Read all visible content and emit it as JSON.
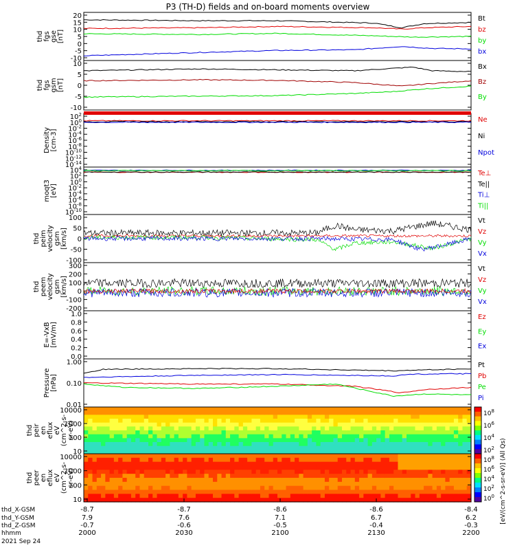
{
  "title": "P3 (TH-D) fields and on-board moments overview",
  "colors": {
    "black": "#000000",
    "red": "#e00000",
    "green": "#00dd00",
    "blue": "#0000dd",
    "darkred": "#a00000",
    "orange": "#ff6600"
  },
  "chart_data": {
    "type": "line",
    "title": "P3 (TH-D) fields and on-board moments overview",
    "x_axis": {
      "rows": [
        {
          "label": "thd_X-GSM",
          "values": [
            "-8.7",
            "-8.7",
            "-8.6",
            "-8.6",
            "-8.4"
          ]
        },
        {
          "label": "thd_Y-GSM",
          "values": [
            "7.9",
            "7.6",
            "7.1",
            "6.7",
            "6.2"
          ]
        },
        {
          "label": "thd_Z-GSM",
          "values": [
            "-0.7",
            "-0.6",
            "-0.5",
            "-0.4",
            "-0.3"
          ]
        },
        {
          "label": "hhmm",
          "values": [
            "2000",
            "2030",
            "2100",
            "2130",
            "2200"
          ]
        }
      ],
      "date": "2021 Sep 24"
    },
    "panels": [
      {
        "ylabel": [
          "thd",
          "fgs",
          "gse",
          "[nT]"
        ],
        "ylim": [
          -13,
          20
        ],
        "ticks": [
          "20",
          "15",
          "10",
          "5",
          "0",
          "-5",
          "-10"
        ],
        "legend": [
          {
            "text": "Bt",
            "color": "black"
          },
          {
            "text": "bz",
            "color": "red"
          },
          {
            "text": "by",
            "color": "green"
          },
          {
            "text": "bx",
            "color": "blue"
          }
        ],
        "series": [
          {
            "name": "Bt",
            "color": "black",
            "x": [
              0,
              0.3,
              0.5,
              0.75,
              0.82,
              0.88,
              1
            ],
            "y": [
              16,
              15.3,
              15.3,
              13.5,
              10,
              13.2,
              14
            ]
          },
          {
            "name": "bz",
            "color": "red",
            "x": [
              0,
              0.3,
              0.5,
              0.75,
              0.82,
              0.88,
              1
            ],
            "y": [
              9.5,
              10,
              11,
              10,
              9,
              10,
              11
            ]
          },
          {
            "name": "by",
            "color": "green",
            "x": [
              0,
              0.3,
              0.5,
              0.75,
              0.85,
              1
            ],
            "y": [
              5.5,
              5,
              5.8,
              4,
              3,
              3.5
            ]
          },
          {
            "name": "bx",
            "color": "blue",
            "x": [
              0,
              0.3,
              0.5,
              0.7,
              0.82,
              0.9,
              1
            ],
            "y": [
              -11,
              -8.5,
              -7,
              -6.5,
              -4,
              -5.5,
              -5.8
            ]
          }
        ]
      },
      {
        "ylabel": [
          "thd",
          "fgs",
          "gsm",
          "[nT]"
        ],
        "ylim": [
          -15,
          10
        ],
        "ticks": [
          "10",
          "5",
          "0",
          "-5",
          "-10"
        ],
        "legend": [
          {
            "text": "Bx",
            "color": "black"
          },
          {
            "text": "Bz",
            "color": "darkred"
          },
          {
            "text": "By",
            "color": "green"
          }
        ],
        "series": [
          {
            "name": "Bx",
            "color": "black",
            "x": [
              0,
              0.3,
              0.5,
              0.7,
              0.85,
              0.9,
              1
            ],
            "y": [
              5.5,
              6.5,
              6,
              5.5,
              7.5,
              5.5,
              5
            ]
          },
          {
            "name": "Bz",
            "color": "darkred",
            "x": [
              0,
              0.3,
              0.5,
              0.7,
              0.82,
              0.9,
              1
            ],
            "y": [
              0,
              0.5,
              0.2,
              -1,
              -3,
              -1.5,
              0
            ]
          },
          {
            "name": "By",
            "color": "green",
            "x": [
              0,
              0.3,
              0.5,
              0.7,
              0.8,
              0.88,
              1
            ],
            "y": [
              -9,
              -8.5,
              -8.2,
              -7,
              -6,
              -4.5,
              -3
            ]
          }
        ]
      },
      {
        "ylabel": [
          "Density",
          "[cm-3]"
        ],
        "log": true,
        "ylim": [
          -14,
          2
        ],
        "ticks": [
          "10^2",
          "10^0",
          "10^-2",
          "10^-4",
          "10^-6",
          "10^-8",
          "10^-10",
          "10^-12",
          "10^-14"
        ],
        "legend": [
          {
            "text": "Ne",
            "color": "red"
          },
          {
            "text": "Ni",
            "color": "black"
          },
          {
            "text": "Npot",
            "color": "blue"
          }
        ],
        "series": [
          {
            "name": "Ne",
            "color": "red",
            "x": [
              0,
              1
            ],
            "y": [
              0.3,
              0.3
            ]
          },
          {
            "name": "Ni",
            "color": "black",
            "x": [
              0,
              1
            ],
            "y": [
              0,
              0
            ]
          },
          {
            "name": "Npot",
            "color": "blue",
            "x": [
              0,
              1
            ],
            "y": [
              -0.2,
              -0.2
            ]
          }
        ]
      },
      {
        "ylabel": [
          "moqt3",
          "[eV]"
        ],
        "log": true,
        "ylim": [
          -10,
          4
        ],
        "ticks": [
          "10^4",
          "10^2",
          "10^0",
          "10^-2",
          "10^-4",
          "10^-6",
          "10^-8",
          "10^-10"
        ],
        "legend": [
          {
            "text": "Te⊥",
            "color": "red"
          },
          {
            "text": "Te||",
            "color": "black"
          },
          {
            "text": "Ti⊥",
            "color": "blue"
          },
          {
            "text": "Ti||",
            "color": "green"
          }
        ],
        "series": [
          {
            "name": "Te⊥",
            "color": "red",
            "x": [
              0,
              1
            ],
            "y": [
              3.0,
              3.0
            ]
          },
          {
            "name": "Te||",
            "color": "black",
            "x": [
              0,
              1
            ],
            "y": [
              3.05,
              3.05
            ]
          },
          {
            "name": "Ti⊥",
            "color": "blue",
            "x": [
              0,
              1
            ],
            "y": [
              3.6,
              3.6
            ]
          },
          {
            "name": "Ti||",
            "color": "green",
            "x": [
              0,
              1
            ],
            "y": [
              3.5,
              3.5
            ]
          }
        ]
      },
      {
        "ylabel": [
          "thd",
          "peim",
          "velocity",
          "gsm",
          "[km/s]"
        ],
        "ylim": [
          -100,
          100
        ],
        "ticks": [
          "100",
          "50",
          "0",
          "-50",
          "-100"
        ],
        "legend": [
          {
            "text": "Vt",
            "color": "black"
          },
          {
            "text": "Vz",
            "color": "red"
          },
          {
            "text": "Vy",
            "color": "green"
          },
          {
            "text": "Vx",
            "color": "blue"
          }
        ],
        "series": [
          {
            "name": "Vt",
            "color": "black",
            "noise": 15,
            "x": [
              0,
              0.3,
              0.6,
              0.65,
              0.7,
              0.8,
              0.9,
              1
            ],
            "y": [
              25,
              25,
              25,
              60,
              40,
              35,
              70,
              40
            ]
          },
          {
            "name": "Vz",
            "color": "red",
            "noise": 6,
            "x": [
              0,
              1
            ],
            "y": [
              12,
              12
            ]
          },
          {
            "name": "Vy",
            "color": "green",
            "noise": 10,
            "x": [
              0,
              0.3,
              0.6,
              0.65,
              0.7,
              0.8,
              0.9,
              1
            ],
            "y": [
              5,
              5,
              -5,
              -50,
              -20,
              -15,
              -45,
              0
            ]
          },
          {
            "name": "Vx",
            "color": "blue",
            "noise": 10,
            "x": [
              0,
              0.3,
              0.6,
              0.8,
              0.87,
              0.93,
              1
            ],
            "y": [
              0,
              0,
              0,
              -5,
              -50,
              -30,
              0
            ]
          }
        ]
      },
      {
        "ylabel": [
          "thd",
          "peem",
          "velocity",
          "gsm",
          "[km/s]"
        ],
        "ylim": [
          -200,
          300
        ],
        "ticks": [
          "300",
          "200",
          "100",
          "0",
          "-100",
          "-200"
        ],
        "legend": [
          {
            "text": "Vt",
            "color": "black"
          },
          {
            "text": "Vz",
            "color": "red"
          },
          {
            "text": "Vy",
            "color": "green"
          },
          {
            "text": "Vx",
            "color": "blue"
          }
        ],
        "series": [
          {
            "name": "Vt",
            "color": "black",
            "noise": 50,
            "x": [
              0,
              1
            ],
            "y": [
              90,
              90
            ]
          },
          {
            "name": "Vy",
            "color": "green",
            "noise": 50,
            "x": [
              0,
              1
            ],
            "y": [
              0,
              0
            ]
          },
          {
            "name": "Vx",
            "color": "blue",
            "noise": 50,
            "x": [
              0,
              1
            ],
            "y": [
              -20,
              -20
            ]
          },
          {
            "name": "Vz",
            "color": "red",
            "noise": 25,
            "x": [
              0,
              1
            ],
            "y": [
              0,
              0
            ]
          }
        ]
      },
      {
        "ylabel": [
          "E=-VxB",
          "[mV/m]"
        ],
        "ylim": [
          0,
          1
        ],
        "ticks": [
          "1.0",
          "0.8",
          "0.6",
          "0.4",
          "0.2",
          "0.0"
        ],
        "legend": [
          {
            "text": "Ez",
            "color": "red"
          },
          {
            "text": "Ey",
            "color": "green"
          },
          {
            "text": "Ex",
            "color": "blue"
          }
        ],
        "series": []
      },
      {
        "ylabel": [
          "Pressure",
          "[nPa]"
        ],
        "log": true,
        "ylim": [
          -2,
          0
        ],
        "ticks": [
          "1.00",
          "0.10",
          "0.01"
        ],
        "legend": [
          {
            "text": "Pt",
            "color": "black"
          },
          {
            "text": "Pb",
            "color": "red"
          },
          {
            "text": "Pe",
            "color": "green"
          },
          {
            "text": "Pi",
            "color": "blue"
          }
        ],
        "series": [
          {
            "name": "Pt",
            "color": "black",
            "x": [
              0,
              0.05,
              0.3,
              0.5,
              0.8,
              0.85,
              1
            ],
            "y": [
              -0.55,
              -0.38,
              -0.35,
              -0.35,
              -0.45,
              -0.42,
              -0.36
            ]
          },
          {
            "name": "Pi",
            "color": "blue",
            "x": [
              0,
              0.3,
              0.5,
              0.8,
              0.85,
              1
            ],
            "y": [
              -0.75,
              -0.65,
              -0.62,
              -0.68,
              -0.6,
              -0.58
            ]
          },
          {
            "name": "Pb",
            "color": "red",
            "x": [
              0,
              0.3,
              0.5,
              0.7,
              0.82,
              0.88,
              1
            ],
            "y": [
              -1.0,
              -1.05,
              -1.05,
              -1.15,
              -1.45,
              -1.3,
              -1.2
            ]
          },
          {
            "name": "Pe",
            "color": "green",
            "x": [
              0,
              0.1,
              0.3,
              0.5,
              0.65,
              0.8,
              0.88,
              1
            ],
            "y": [
              -1.05,
              -1.2,
              -1.25,
              -1.15,
              -1.05,
              -1.6,
              -1.5,
              -1.55
            ]
          }
        ]
      },
      {
        "ylabel": [
          "thd",
          "peir",
          "en",
          "eflux",
          "eV",
          "(cm^2-s-",
          "sr-eV)"
        ],
        "spectrogram": "ion",
        "ticks": [
          "10000",
          "1000",
          "100",
          "10"
        ]
      },
      {
        "ylabel": [
          "thd",
          "peer",
          "en",
          "eflux",
          "eV",
          "(cm^2-s-",
          "sr-eV)"
        ],
        "spectrogram": "electron",
        "ticks": [
          "10000",
          "1000",
          "100",
          "10"
        ]
      }
    ],
    "colorbars": [
      {
        "label": "[eV/(cm^2-s-sr-eV)] (All Qs)",
        "ticks": [
          "10^8",
          "10^6",
          "10^4",
          "10^2"
        ]
      },
      {
        "label": "[eV/(cm^2-s-sr-eV)] (All Qs)",
        "ticks": [
          "10^8",
          "10^6",
          "10^4",
          "10^2",
          "10^0"
        ]
      }
    ]
  }
}
